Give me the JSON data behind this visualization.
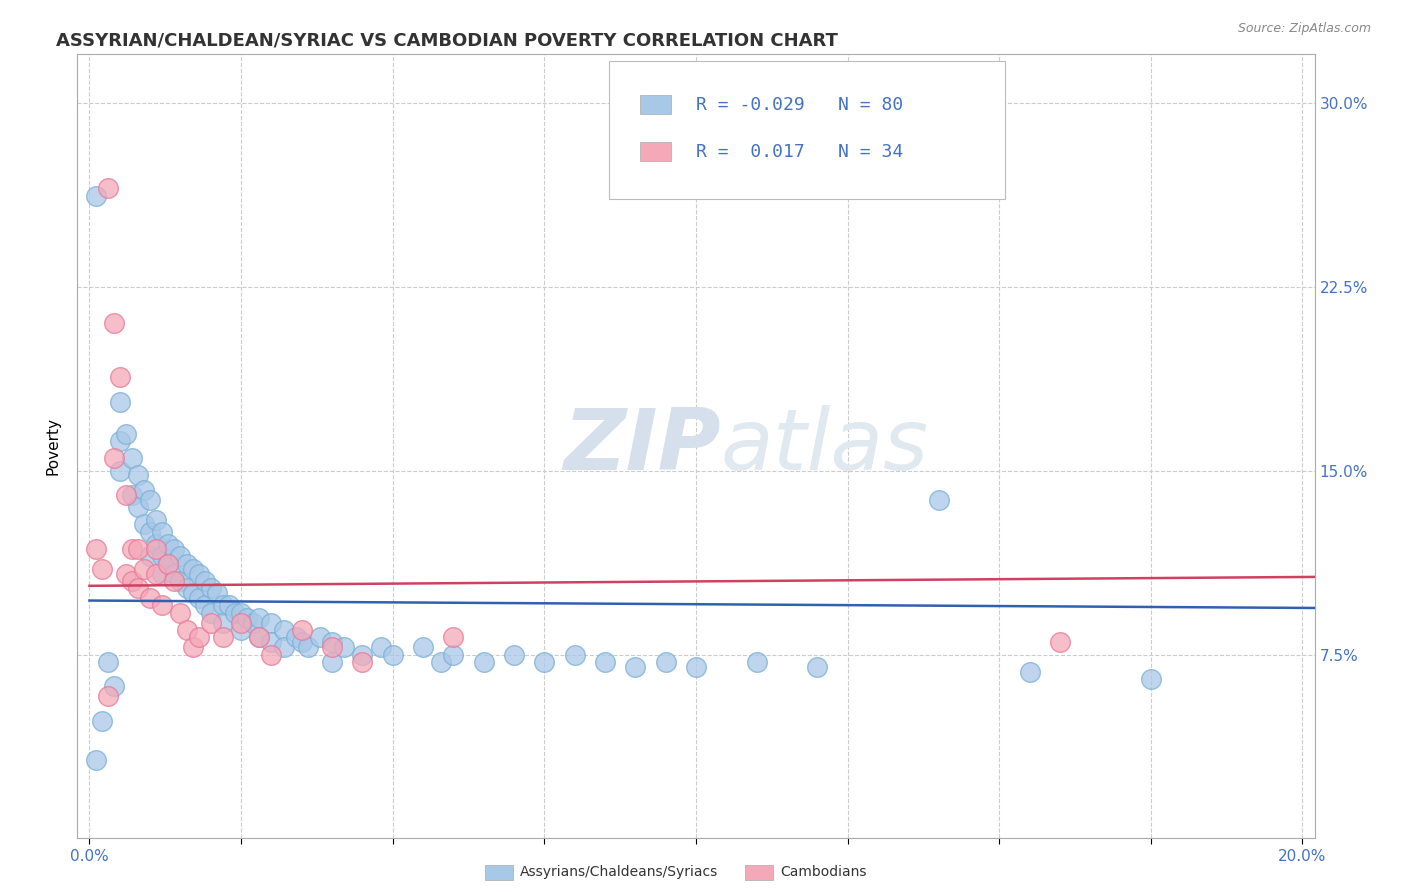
{
  "title": "ASSYRIAN/CHALDEAN/SYRIAC VS CAMBODIAN POVERTY CORRELATION CHART",
  "source_text": "Source: ZipAtlas.com",
  "ylabel": "Poverty",
  "xlim": [
    -0.002,
    0.202
  ],
  "ylim": [
    0.0,
    0.32
  ],
  "xticks": [
    0.0,
    0.025,
    0.05,
    0.075,
    0.1,
    0.125,
    0.15,
    0.175,
    0.2
  ],
  "yticks": [
    0.0,
    0.075,
    0.15,
    0.225,
    0.3
  ],
  "legend_r_blue": "-0.029",
  "legend_n_blue": "80",
  "legend_r_pink": "0.017",
  "legend_n_pink": "34",
  "legend_label_blue": "Assyrians/Chaldeans/Syriacs",
  "legend_label_pink": "Cambodians",
  "blue_color": "#a8c8e8",
  "pink_color": "#f4a8b8",
  "blue_edge": "#7bafd4",
  "pink_edge": "#e87898",
  "trend_blue": "#3060b0",
  "trend_pink": "#d04060",
  "background_color": "#ffffff",
  "grid_color": "#cccccc",
  "watermark_zip": "ZIP",
  "watermark_atlas": "atlas",
  "watermark_color": "#d5e0ec",
  "blue_scatter": [
    [
      0.001,
      0.262
    ],
    [
      0.005,
      0.178
    ],
    [
      0.005,
      0.162
    ],
    [
      0.005,
      0.15
    ],
    [
      0.006,
      0.165
    ],
    [
      0.007,
      0.155
    ],
    [
      0.007,
      0.14
    ],
    [
      0.008,
      0.148
    ],
    [
      0.008,
      0.135
    ],
    [
      0.009,
      0.142
    ],
    [
      0.009,
      0.128
    ],
    [
      0.01,
      0.138
    ],
    [
      0.01,
      0.125
    ],
    [
      0.01,
      0.115
    ],
    [
      0.011,
      0.13
    ],
    [
      0.011,
      0.12
    ],
    [
      0.012,
      0.125
    ],
    [
      0.012,
      0.115
    ],
    [
      0.012,
      0.108
    ],
    [
      0.013,
      0.12
    ],
    [
      0.013,
      0.112
    ],
    [
      0.014,
      0.118
    ],
    [
      0.014,
      0.108
    ],
    [
      0.015,
      0.115
    ],
    [
      0.015,
      0.105
    ],
    [
      0.016,
      0.112
    ],
    [
      0.016,
      0.102
    ],
    [
      0.017,
      0.11
    ],
    [
      0.017,
      0.1
    ],
    [
      0.018,
      0.108
    ],
    [
      0.018,
      0.098
    ],
    [
      0.019,
      0.105
    ],
    [
      0.019,
      0.095
    ],
    [
      0.02,
      0.102
    ],
    [
      0.02,
      0.092
    ],
    [
      0.021,
      0.1
    ],
    [
      0.022,
      0.095
    ],
    [
      0.022,
      0.088
    ],
    [
      0.023,
      0.095
    ],
    [
      0.024,
      0.092
    ],
    [
      0.025,
      0.092
    ],
    [
      0.025,
      0.085
    ],
    [
      0.026,
      0.09
    ],
    [
      0.027,
      0.088
    ],
    [
      0.028,
      0.09
    ],
    [
      0.028,
      0.082
    ],
    [
      0.03,
      0.088
    ],
    [
      0.03,
      0.08
    ],
    [
      0.032,
      0.085
    ],
    [
      0.032,
      0.078
    ],
    [
      0.034,
      0.082
    ],
    [
      0.035,
      0.08
    ],
    [
      0.036,
      0.078
    ],
    [
      0.038,
      0.082
    ],
    [
      0.04,
      0.08
    ],
    [
      0.04,
      0.072
    ],
    [
      0.042,
      0.078
    ],
    [
      0.045,
      0.075
    ],
    [
      0.048,
      0.078
    ],
    [
      0.05,
      0.075
    ],
    [
      0.055,
      0.078
    ],
    [
      0.058,
      0.072
    ],
    [
      0.06,
      0.075
    ],
    [
      0.065,
      0.072
    ],
    [
      0.07,
      0.075
    ],
    [
      0.075,
      0.072
    ],
    [
      0.08,
      0.075
    ],
    [
      0.085,
      0.072
    ],
    [
      0.09,
      0.07
    ],
    [
      0.095,
      0.072
    ],
    [
      0.1,
      0.07
    ],
    [
      0.11,
      0.072
    ],
    [
      0.12,
      0.07
    ],
    [
      0.14,
      0.138
    ],
    [
      0.155,
      0.068
    ],
    [
      0.175,
      0.065
    ],
    [
      0.003,
      0.072
    ],
    [
      0.004,
      0.062
    ],
    [
      0.001,
      0.032
    ],
    [
      0.002,
      0.048
    ]
  ],
  "pink_scatter": [
    [
      0.001,
      0.118
    ],
    [
      0.002,
      0.11
    ],
    [
      0.003,
      0.265
    ],
    [
      0.004,
      0.21
    ],
    [
      0.004,
      0.155
    ],
    [
      0.005,
      0.188
    ],
    [
      0.006,
      0.14
    ],
    [
      0.006,
      0.108
    ],
    [
      0.007,
      0.118
    ],
    [
      0.007,
      0.105
    ],
    [
      0.008,
      0.118
    ],
    [
      0.008,
      0.102
    ],
    [
      0.009,
      0.11
    ],
    [
      0.01,
      0.098
    ],
    [
      0.011,
      0.118
    ],
    [
      0.011,
      0.108
    ],
    [
      0.012,
      0.095
    ],
    [
      0.013,
      0.112
    ],
    [
      0.014,
      0.105
    ],
    [
      0.015,
      0.092
    ],
    [
      0.016,
      0.085
    ],
    [
      0.017,
      0.078
    ],
    [
      0.018,
      0.082
    ],
    [
      0.02,
      0.088
    ],
    [
      0.022,
      0.082
    ],
    [
      0.025,
      0.088
    ],
    [
      0.028,
      0.082
    ],
    [
      0.03,
      0.075
    ],
    [
      0.035,
      0.085
    ],
    [
      0.04,
      0.078
    ],
    [
      0.045,
      0.072
    ],
    [
      0.06,
      0.082
    ],
    [
      0.16,
      0.08
    ],
    [
      0.003,
      0.058
    ]
  ]
}
